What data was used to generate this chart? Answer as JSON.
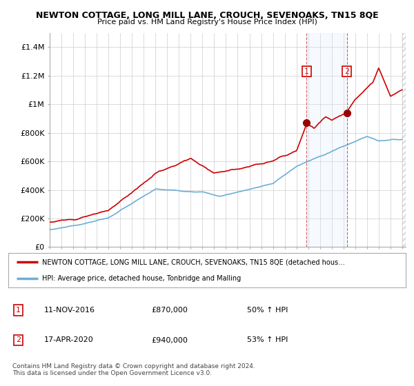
{
  "title": "NEWTON COTTAGE, LONG MILL LANE, CROUCH, SEVENOAKS, TN15 8QE",
  "subtitle": "Price paid vs. HM Land Registry's House Price Index (HPI)",
  "ylim": [
    0,
    1500000
  ],
  "yticks": [
    0,
    200000,
    400000,
    600000,
    800000,
    1000000,
    1200000,
    1400000
  ],
  "ytick_labels": [
    "£0",
    "£200K",
    "£400K",
    "£600K",
    "£800K",
    "£1M",
    "£1.2M",
    "£1.4M"
  ],
  "hpi_color": "#6baed6",
  "price_color": "#cc0000",
  "shade_color": "#ddeeff",
  "marker1_year": 2016.87,
  "marker1_value": 870000,
  "marker2_year": 2020.29,
  "marker2_value": 940000,
  "legend_price_label": "NEWTON COTTAGE, LONG MILL LANE, CROUCH, SEVENOAKS, TN15 8QE (detached hous…",
  "legend_hpi_label": "HPI: Average price, detached house, Tonbridge and Malling",
  "annotation1_date": "11-NOV-2016",
  "annotation1_price": "£870,000",
  "annotation1_hpi": "50% ↑ HPI",
  "annotation2_date": "17-APR-2020",
  "annotation2_price": "£940,000",
  "annotation2_hpi": "53% ↑ HPI",
  "footer": "Contains HM Land Registry data © Crown copyright and database right 2024.\nThis data is licensed under the Open Government Licence v3.0.",
  "background_color": "#ffffff",
  "grid_color": "#cccccc"
}
